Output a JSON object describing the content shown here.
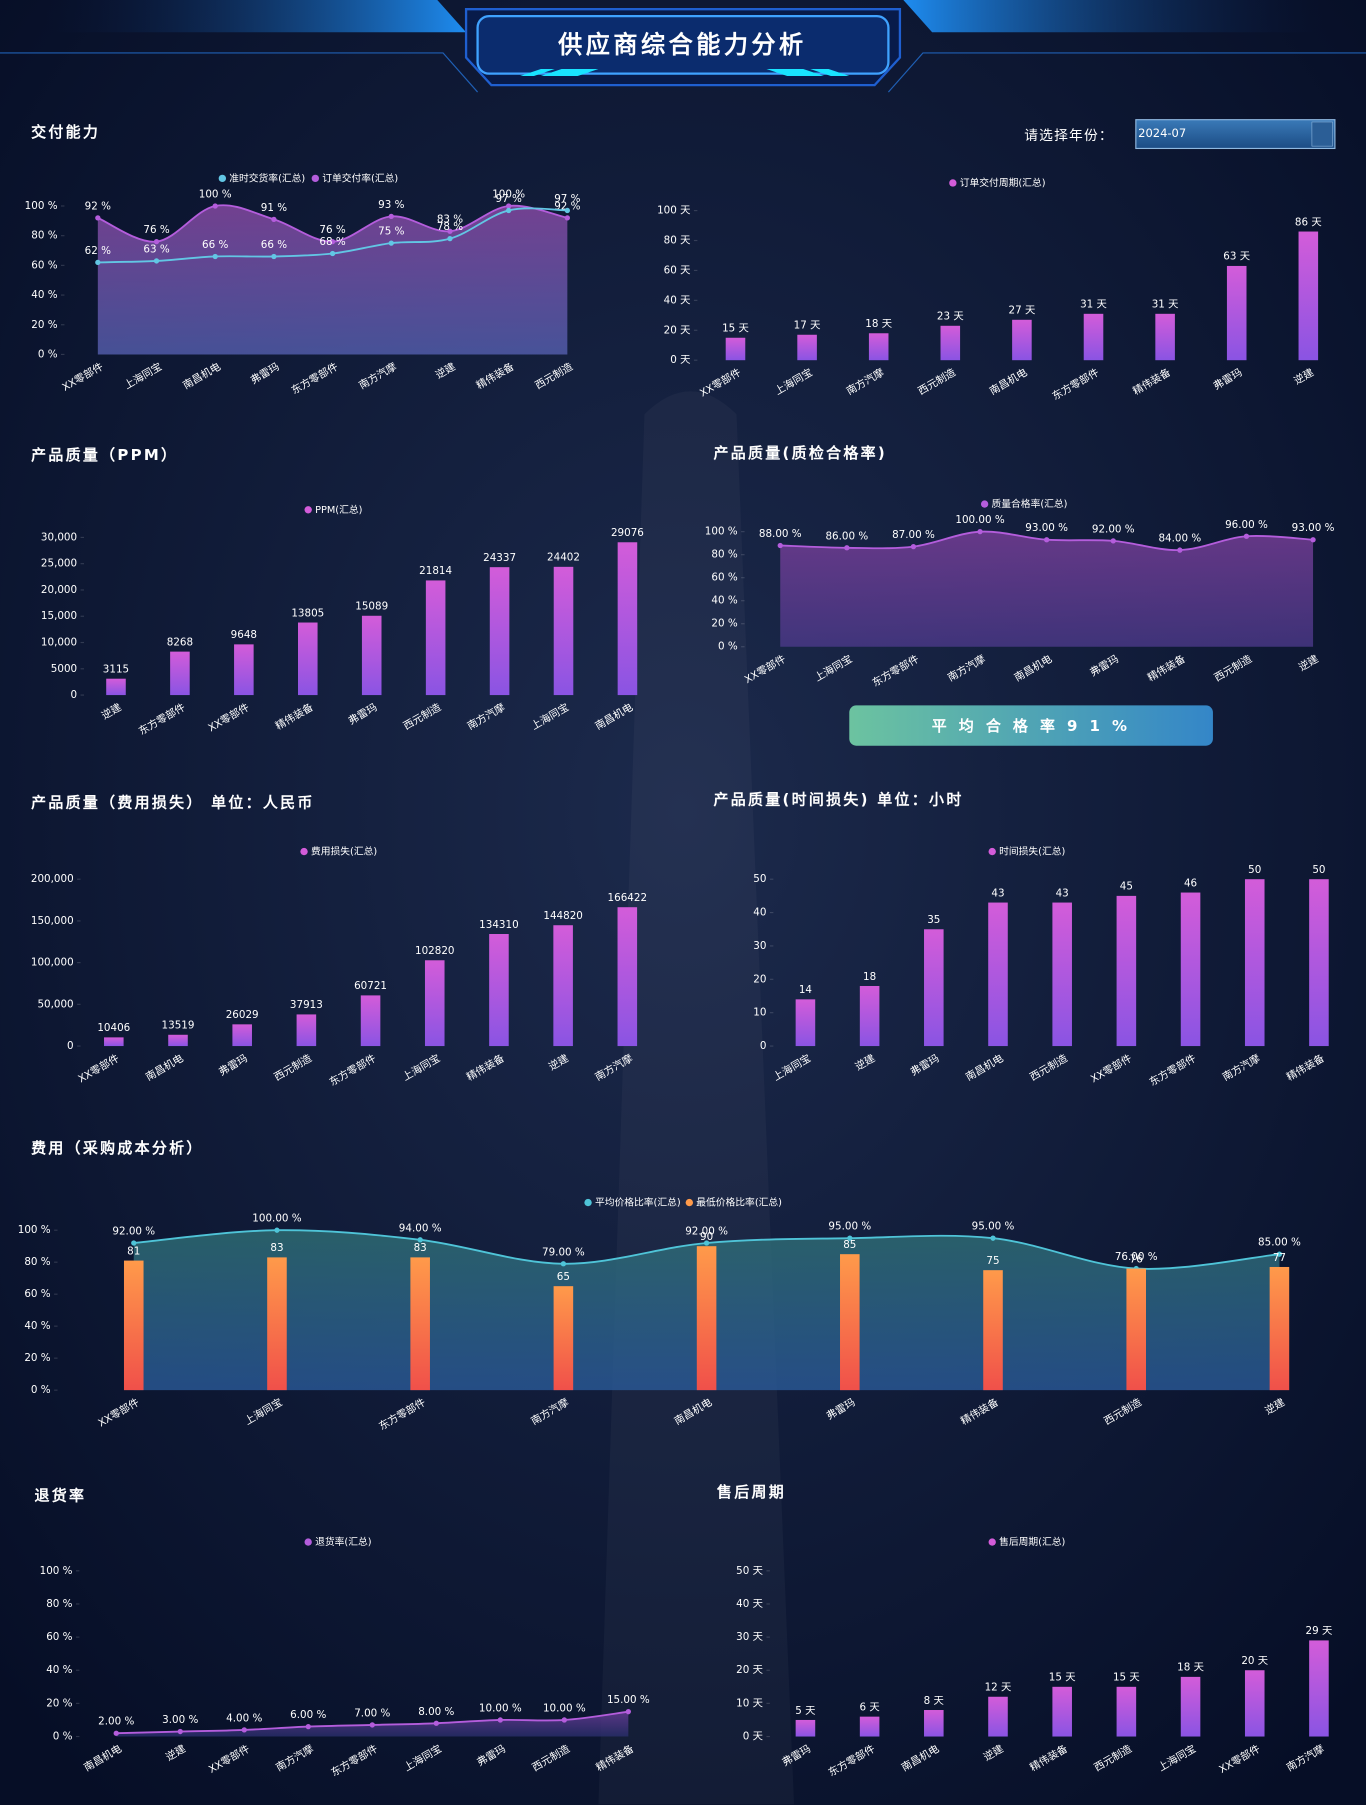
{
  "header": {
    "title": "供应商综合能力分析",
    "year_prompt": "请选择年份：",
    "year_value": "2024-07"
  },
  "chart_data": [
    {
      "type": "area",
      "title": "交付能力",
      "categories": [
        "XX零部件",
        "上海同宝",
        "南昌机电",
        "弗雷玛",
        "东方零部件",
        "南方汽摩",
        "逆建",
        "精伟装备",
        "西元制造"
      ],
      "series": [
        {
          "name": "准时交货率(汇总)",
          "color": "#62c6e4",
          "values": [
            62,
            63,
            66,
            66,
            68,
            75,
            78,
            97,
            97
          ],
          "value_labels": [
            "62 %",
            "63 %",
            "66 %",
            "66 %",
            "68 %",
            "75 %",
            "78 %",
            "97 %",
            "97 %"
          ]
        },
        {
          "name": "订单交付率(汇总)",
          "color": "#b45ddc",
          "fill": [
            "#8a4aa6",
            "#5762b4"
          ],
          "values": [
            92,
            76,
            100,
            91,
            76,
            93,
            83,
            100,
            92
          ],
          "value_labels": [
            "92 %",
            "76 %",
            "100 %",
            "91 %",
            "76 %",
            "93 %",
            "83 %",
            "100 %",
            "92 %"
          ]
        }
      ],
      "ylim": [
        0,
        100
      ],
      "yticks": [
        {
          "value": 0,
          "label": "0 %"
        },
        {
          "value": 20,
          "label": "20 %"
        },
        {
          "value": 40,
          "label": "40 %"
        },
        {
          "value": 60,
          "label": "60 %"
        },
        {
          "value": 80,
          "label": "80 %"
        },
        {
          "value": 100,
          "label": "100 %"
        }
      ]
    },
    {
      "type": "bar",
      "categories": [
        "XX零部件",
        "上海同宝",
        "南方汽摩",
        "西元制造",
        "南昌机电",
        "东方零部件",
        "精伟装备",
        "弗雷玛",
        "逆建"
      ],
      "series": [
        {
          "name": "订单交付周期(汇总)",
          "color": [
            "#d35cd9",
            "#8a54e3"
          ],
          "values": [
            15,
            17,
            18,
            23,
            27,
            31,
            31,
            63,
            86
          ],
          "value_labels": [
            "15 天",
            "17 天",
            "18 天",
            "23 天",
            "27 天",
            "31 天",
            "31 天",
            "63 天",
            "86 天"
          ]
        }
      ],
      "ylim": [
        0,
        100
      ],
      "yticks": [
        {
          "value": 0,
          "label": "0 天"
        },
        {
          "value": 20,
          "label": "20 天"
        },
        {
          "value": 40,
          "label": "40 天"
        },
        {
          "value": 60,
          "label": "60 天"
        },
        {
          "value": 80,
          "label": "80 天"
        },
        {
          "value": 100,
          "label": "100 天"
        }
      ]
    },
    {
      "type": "bar",
      "title": "产品质量（PPM）",
      "categories": [
        "逆建",
        "东方零部件",
        "XX零部件",
        "精伟装备",
        "弗雷玛",
        "西元制造",
        "南方汽摩",
        "上海同宝",
        "南昌机电"
      ],
      "series": [
        {
          "name": "PPM(汇总)",
          "color": [
            "#d35cd9",
            "#8a54e3"
          ],
          "values": [
            3115,
            8268,
            9648,
            13805,
            15089,
            21814,
            24337,
            24402,
            29076
          ]
        }
      ],
      "ylim": [
        0,
        30000
      ],
      "yticks": [
        0,
        5000,
        {
          "value": 10000,
          "label": "10,000"
        },
        {
          "value": 15000,
          "label": "15,000"
        },
        {
          "value": 20000,
          "label": "20,000"
        },
        {
          "value": 25000,
          "label": "25,000"
        },
        {
          "value": 30000,
          "label": "30,000"
        }
      ]
    },
    {
      "type": "area",
      "title": "产品质量(质检合格率)",
      "annotation": "平 均 合 格 率 9 1 %",
      "categories": [
        "XX零部件",
        "上海同宝",
        "东方零部件",
        "南方汽摩",
        "南昌机电",
        "弗雷玛",
        "精伟装备",
        "西元制造",
        "逆建"
      ],
      "series": [
        {
          "name": "质量合格率(汇总)",
          "color": "#b45ddc",
          "fill": [
            "#7a3f9a",
            "#4d3a8c"
          ],
          "values": [
            88,
            86,
            87,
            100,
            93,
            92,
            84,
            96,
            93
          ],
          "value_labels": [
            "88.00 %",
            "86.00 %",
            "87.00 %",
            "100.00 %",
            "93.00 %",
            "92.00 %",
            "84.00 %",
            "96.00 %",
            "93.00 %"
          ]
        }
      ],
      "ylim": [
        0,
        100
      ],
      "yticks": [
        {
          "value": 0,
          "label": "0 %"
        },
        {
          "value": 20,
          "label": "20 %"
        },
        {
          "value": 40,
          "label": "40 %"
        },
        {
          "value": 60,
          "label": "60 %"
        },
        {
          "value": 80,
          "label": "80 %"
        },
        {
          "value": 100,
          "label": "100 %"
        }
      ]
    },
    {
      "type": "bar",
      "title": "产品质量（费用损失） 单位：人民币",
      "categories": [
        "XX零部件",
        "南昌机电",
        "弗雷玛",
        "西元制造",
        "东方零部件",
        "上海同宝",
        "精伟装备",
        "逆建",
        "南方汽摩"
      ],
      "series": [
        {
          "name": "费用损失(汇总)",
          "color": [
            "#d35cd9",
            "#8a54e3"
          ],
          "values": [
            10406,
            13519,
            26029,
            37913,
            60721,
            102820,
            134310,
            144820,
            166422
          ]
        }
      ],
      "ylim": [
        0,
        200000
      ],
      "yticks": [
        0,
        {
          "value": 50000,
          "label": "50,000"
        },
        {
          "value": 100000,
          "label": "100,000"
        },
        {
          "value": 150000,
          "label": "150,000"
        },
        {
          "value": 200000,
          "label": "200,000"
        }
      ]
    },
    {
      "type": "bar",
      "title": "产品质量(时间损失) 单位：小时",
      "categories": [
        "上海同宝",
        "逆建",
        "弗雷玛",
        "南昌机电",
        "西元制造",
        "XX零部件",
        "东方零部件",
        "南方汽摩",
        "精伟装备"
      ],
      "series": [
        {
          "name": "时间损失(汇总)",
          "color": [
            "#d35cd9",
            "#8a54e3"
          ],
          "values": [
            14,
            18,
            35,
            43,
            43,
            45,
            46,
            50,
            50
          ]
        }
      ],
      "ylim": [
        0,
        50
      ],
      "yticks": [
        0,
        10,
        20,
        30,
        40,
        50
      ]
    },
    {
      "type": "combo",
      "title": "费用（采购成本分析）",
      "categories": [
        "XX零部件",
        "上海同宝",
        "东方零部件",
        "南方汽摩",
        "南昌机电",
        "弗雷玛",
        "精伟装备",
        "西元制造",
        "逆建"
      ],
      "series": [
        {
          "name": "平均价格比率(汇总)",
          "type": "area",
          "color": "#4fc4d8",
          "fill": [
            "#2f6f74",
            "#2b5c9c"
          ],
          "values": [
            92,
            100,
            94,
            79,
            92,
            95,
            95,
            76,
            85
          ],
          "value_labels": [
            "92.00 %",
            "100.00 %",
            "94.00 %",
            "79.00 %",
            "92.00 %",
            "95.00 %",
            "95.00 %",
            "76.00 %",
            "85.00 %"
          ]
        },
        {
          "name": "最低价格比率(汇总)",
          "type": "bar",
          "color": [
            "#ff9a4a",
            "#f0504a"
          ],
          "values": [
            81,
            83,
            83,
            65,
            90,
            85,
            75,
            76,
            77
          ]
        }
      ],
      "ylim": [
        0,
        100
      ],
      "yticks": [
        {
          "value": 0,
          "label": "0 %"
        },
        {
          "value": 20,
          "label": "20 %"
        },
        {
          "value": 40,
          "label": "40 %"
        },
        {
          "value": 60,
          "label": "60 %"
        },
        {
          "value": 80,
          "label": "80 %"
        },
        {
          "value": 100,
          "label": "100 %"
        }
      ]
    },
    {
      "type": "area",
      "title": "退货率",
      "categories": [
        "南昌机电",
        "逆建",
        "XX零部件",
        "南方汽摩",
        "东方零部件",
        "上海同宝",
        "弗雷玛",
        "西元制造",
        "精伟装备"
      ],
      "series": [
        {
          "name": "退货率(汇总)",
          "color": "#b45ddc",
          "fill": [
            "#6a3c98",
            "#2a2f6e"
          ],
          "values": [
            2,
            3,
            4,
            6,
            7,
            8,
            10,
            10,
            15
          ],
          "value_labels": [
            "2.00 %",
            "3.00 %",
            "4.00 %",
            "6.00 %",
            "7.00 %",
            "8.00 %",
            "10.00 %",
            "10.00 %",
            "15.00 %"
          ]
        }
      ],
      "ylim": [
        0,
        100
      ],
      "yticks": [
        {
          "value": 0,
          "label": "0 %"
        },
        {
          "value": 20,
          "label": "20 %"
        },
        {
          "value": 40,
          "label": "40 %"
        },
        {
          "value": 60,
          "label": "60 %"
        },
        {
          "value": 80,
          "label": "80 %"
        },
        {
          "value": 100,
          "label": "100 %"
        }
      ]
    },
    {
      "type": "bar",
      "title": "售后周期",
      "categories": [
        "弗雷玛",
        "东方零部件",
        "南昌机电",
        "逆建",
        "精伟装备",
        "西元制造",
        "上海同宝",
        "XX零部件",
        "南方汽摩"
      ],
      "series": [
        {
          "name": "售后周期(汇总)",
          "color": [
            "#d35cd9",
            "#8a54e3"
          ],
          "values": [
            5,
            6,
            8,
            12,
            15,
            15,
            18,
            20,
            29
          ],
          "value_labels": [
            "5 天",
            "6 天",
            "8 天",
            "12 天",
            "15 天",
            "15 天",
            "18 天",
            "20 天",
            "29 天"
          ]
        }
      ],
      "ylim": [
        0,
        50
      ],
      "yticks": [
        {
          "value": 0,
          "label": "0 天"
        },
        {
          "value": 10,
          "label": "10 天"
        },
        {
          "value": 20,
          "label": "20 天"
        },
        {
          "value": 30,
          "label": "30 天"
        },
        {
          "value": 40,
          "label": "40 天"
        },
        {
          "value": 50,
          "label": "50 天"
        }
      ]
    }
  ]
}
